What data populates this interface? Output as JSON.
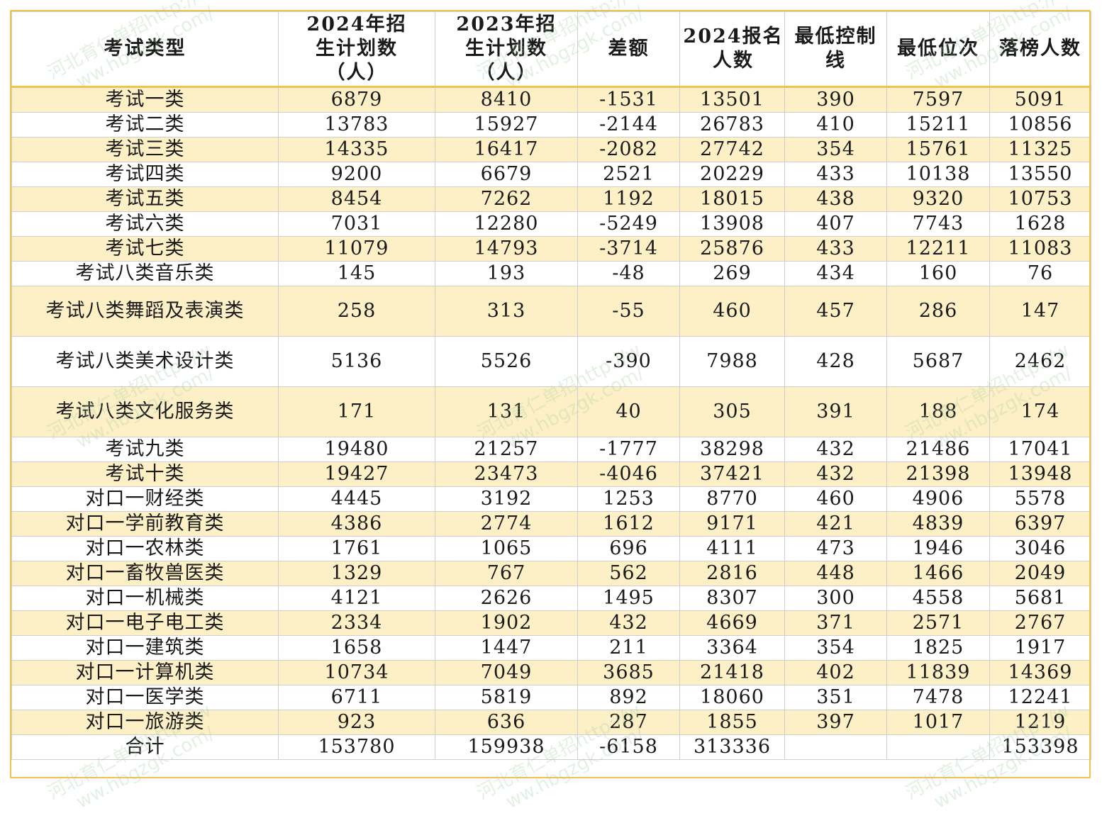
{
  "table": {
    "headers": [
      "考试类型",
      "2024年招生计划数（人）",
      "2023年招生计划数（人）",
      "差额",
      "2024报名人数",
      "最低控制线",
      "最低位次",
      "落榜人数"
    ],
    "rows": [
      [
        "考试一类",
        "6879",
        "8410",
        "-1531",
        "13501",
        "390",
        "7597",
        "5091"
      ],
      [
        "考试二类",
        "13783",
        "15927",
        "-2144",
        "26783",
        "410",
        "15211",
        "10856"
      ],
      [
        "考试三类",
        "14335",
        "16417",
        "-2082",
        "27742",
        "354",
        "15761",
        "11325"
      ],
      [
        "考试四类",
        "9200",
        "6679",
        "2521",
        "20229",
        "433",
        "10138",
        "13550"
      ],
      [
        "考试五类",
        "8454",
        "7262",
        "1192",
        "18015",
        "438",
        "9320",
        "10753"
      ],
      [
        "考试六类",
        "7031",
        "12280",
        "-5249",
        "13908",
        "407",
        "7743",
        "1628"
      ],
      [
        "考试七类",
        "11079",
        "14793",
        "-3714",
        "25876",
        "433",
        "12211",
        "11083"
      ],
      [
        "考试八类音乐类",
        "145",
        "193",
        "-48",
        "269",
        "434",
        "160",
        "76"
      ],
      [
        "考试八类舞蹈及表演类",
        "258",
        "313",
        "-55",
        "460",
        "457",
        "286",
        "147"
      ],
      [
        "考试八类美术设计类",
        "5136",
        "5526",
        "-390",
        "7988",
        "428",
        "5687",
        "2462"
      ],
      [
        "考试八类文化服务类",
        "171",
        "131",
        "40",
        "305",
        "391",
        "188",
        "174"
      ],
      [
        "考试九类",
        "19480",
        "21257",
        "-1777",
        "38298",
        "432",
        "21486",
        "17041"
      ],
      [
        "考试十类",
        "19427",
        "23473",
        "-4046",
        "37421",
        "432",
        "21398",
        "13948"
      ],
      [
        "对口一财经类",
        "4445",
        "3192",
        "1253",
        "8770",
        "460",
        "4906",
        "5578"
      ],
      [
        "对口一学前教育类",
        "4386",
        "2774",
        "1612",
        "9171",
        "421",
        "4839",
        "6397"
      ],
      [
        "对口一农林类",
        "1761",
        "1065",
        "696",
        "4111",
        "473",
        "1946",
        "3046"
      ],
      [
        "对口一畜牧兽医类",
        "1329",
        "767",
        "562",
        "2816",
        "448",
        "1466",
        "2049"
      ],
      [
        "对口一机械类",
        "4121",
        "2626",
        "1495",
        "8307",
        "300",
        "4558",
        "5681"
      ],
      [
        "对口一电子电工类",
        "2334",
        "1902",
        "432",
        "4669",
        "371",
        "2571",
        "2767"
      ],
      [
        "对口一建筑类",
        "1658",
        "1447",
        "211",
        "3364",
        "354",
        "1825",
        "1917"
      ],
      [
        "对口一计算机类",
        "10734",
        "7049",
        "3685",
        "21418",
        "402",
        "11839",
        "14369"
      ],
      [
        "对口一医学类",
        "6711",
        "5819",
        "892",
        "18060",
        "351",
        "7478",
        "12241"
      ],
      [
        "对口一旅游类",
        "923",
        "636",
        "287",
        "1855",
        "397",
        "1017",
        "1219"
      ],
      [
        "合计",
        "153780",
        "159938",
        "-6158",
        "313336",
        "",
        "",
        "153398"
      ]
    ]
  },
  "watermark": {
    "text_a": "河北育仁单招http://w",
    "text_b": "ww.hbgzgk.com/",
    "color": "#a0c8a0"
  },
  "colors": {
    "highlight_row": "#fdf0c6",
    "header_rule": "#f2c24a"
  }
}
